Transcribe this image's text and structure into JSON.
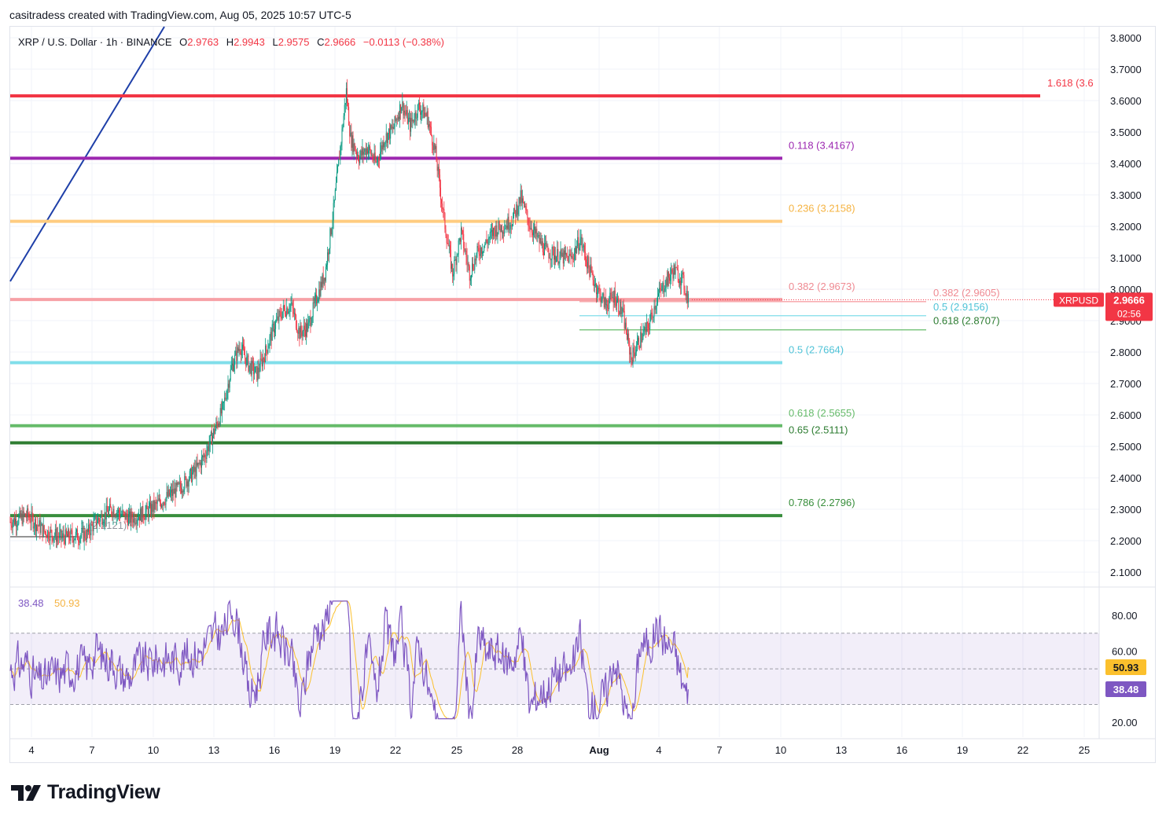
{
  "header": {
    "attribution": "casitradess created with TradingView.com, Aug 05, 2025 10:57 UTC-5"
  },
  "legend": {
    "symbol": "XRP / U.S. Dollar · 1h · BINANCE",
    "open_label": "O",
    "open": "2.9763",
    "high_label": "H",
    "high": "2.9943",
    "low_label": "L",
    "low": "2.9575",
    "close_label": "C",
    "close": "2.9666",
    "change": "−0.0113 (−0.38%)"
  },
  "colors": {
    "up": "#089981",
    "down": "#f23645",
    "fib_1618": "#f23645",
    "fib_0118": "#9c27b0",
    "fib_0236": "#ffcc80",
    "fib_0382": "#f7a1a6",
    "fib_05": "#80deea",
    "fib_0618": "#66bb6a",
    "fib_065": "#2e7d32",
    "fib_0786": "#388e3c",
    "rsi": "#7e57c2",
    "rsi_ma": "#fbc02d",
    "trendline": "#1e3fa8"
  },
  "chart_data": {
    "type": "candlestick",
    "symbol": "XRPUSD",
    "interval": "1h",
    "price_axis": {
      "ylim": [
        2.05,
        3.85
      ],
      "ticks": [
        "2.1000",
        "2.2000",
        "2.3000",
        "2.4000",
        "2.5000",
        "2.6000",
        "2.7000",
        "2.8000",
        "2.9000",
        "3.0000",
        "3.1000",
        "3.2000",
        "3.3000",
        "3.4000",
        "3.5000",
        "3.6000",
        "3.7000",
        "3.8000"
      ]
    },
    "time_axis": {
      "labels": [
        "4",
        "7",
        "10",
        "13",
        "16",
        "19",
        "22",
        "25",
        "28",
        "Aug",
        "4",
        "7",
        "10",
        "13",
        "16",
        "19",
        "22",
        "25"
      ]
    },
    "price_path": [
      [
        0,
        2.26
      ],
      [
        2,
        2.28
      ],
      [
        4,
        2.23
      ],
      [
        6,
        2.21
      ],
      [
        9,
        2.22
      ],
      [
        10,
        2.26
      ],
      [
        12,
        2.3
      ],
      [
        14,
        2.27
      ],
      [
        16,
        2.29
      ],
      [
        18,
        2.33
      ],
      [
        20,
        2.37
      ],
      [
        22,
        2.43
      ],
      [
        23,
        2.48
      ],
      [
        24,
        2.55
      ],
      [
        25,
        2.62
      ],
      [
        26,
        2.75
      ],
      [
        27,
        2.82
      ],
      [
        28,
        2.76
      ],
      [
        29,
        2.73
      ],
      [
        30,
        2.8
      ],
      [
        31,
        2.88
      ],
      [
        32,
        2.93
      ],
      [
        33,
        2.95
      ],
      [
        34,
        2.86
      ],
      [
        35,
        2.88
      ],
      [
        36,
        2.97
      ],
      [
        37,
        3.05
      ],
      [
        38,
        3.25
      ],
      [
        39,
        3.5
      ],
      [
        39.5,
        3.63
      ],
      [
        40,
        3.48
      ],
      [
        41,
        3.42
      ],
      [
        42,
        3.45
      ],
      [
        43,
        3.4
      ],
      [
        44,
        3.48
      ],
      [
        45,
        3.51
      ],
      [
        46,
        3.59
      ],
      [
        47,
        3.52
      ],
      [
        48,
        3.58
      ],
      [
        49,
        3.55
      ],
      [
        50,
        3.43
      ],
      [
        51,
        3.22
      ],
      [
        52,
        3.05
      ],
      [
        53,
        3.18
      ],
      [
        54,
        3.05
      ],
      [
        55,
        3.12
      ],
      [
        56,
        3.15
      ],
      [
        57,
        3.19
      ],
      [
        58,
        3.2
      ],
      [
        59,
        3.22
      ],
      [
        60,
        3.29
      ],
      [
        61,
        3.21
      ],
      [
        62,
        3.16
      ],
      [
        63,
        3.12
      ],
      [
        64,
        3.11
      ],
      [
        65,
        3.1
      ],
      [
        66,
        3.1
      ],
      [
        67,
        3.16
      ],
      [
        68,
        3.07
      ],
      [
        69,
        3.0
      ],
      [
        70,
        2.95
      ],
      [
        71,
        2.98
      ],
      [
        72,
        2.92
      ],
      [
        73,
        2.78
      ],
      [
        74,
        2.84
      ],
      [
        75,
        2.88
      ],
      [
        76,
        2.97
      ],
      [
        77,
        3.02
      ],
      [
        78,
        3.06
      ],
      [
        79,
        3.03
      ],
      [
        79.7,
        2.97
      ]
    ],
    "current_price": "2.9666",
    "countdown": "02:56",
    "price_label": "XRPUSD",
    "fib_levels_major": [
      {
        "label": "1.618 (3.6",
        "price": 3.615,
        "color": "#f23645"
      },
      {
        "label": "0.118 (3.4167)",
        "price": 3.4167,
        "color": "#9c27b0"
      },
      {
        "label": "0.236 (3.2158)",
        "price": 3.2158,
        "color": "#ffcc80"
      },
      {
        "label": "0.382 (2.9673)",
        "price": 2.9673,
        "color": "#f7a1a6"
      },
      {
        "label": "0.5 (2.7664)",
        "price": 2.7664,
        "color": "#80deea"
      },
      {
        "label": "0.618 (2.5655)",
        "price": 2.5655,
        "color": "#66bb6a"
      },
      {
        "label": "0.65 (2.5111)",
        "price": 2.5111,
        "color": "#2e7d32"
      },
      {
        "label": "0.786 (2.2796)",
        "price": 2.2796,
        "color": "#388e3c"
      }
    ],
    "fib_levels_minor": [
      {
        "label": "0.382 (2.9605)",
        "price": 2.9605,
        "color": "#f7a1a6"
      },
      {
        "label": "0.5 (2.9156)",
        "price": 2.9156,
        "color": "#80deea"
      },
      {
        "label": "0.618 (2.8707)",
        "price": 2.8707,
        "color": "#66bb6a"
      }
    ],
    "left_fib_label": "1 (2.2121)",
    "rsi": {
      "value": "38.48",
      "ma_value": "50.93",
      "ylim": [
        12,
        92
      ],
      "ticks": [
        "20.00",
        "60.00",
        "80.00"
      ],
      "band": [
        30,
        70
      ]
    }
  }
}
